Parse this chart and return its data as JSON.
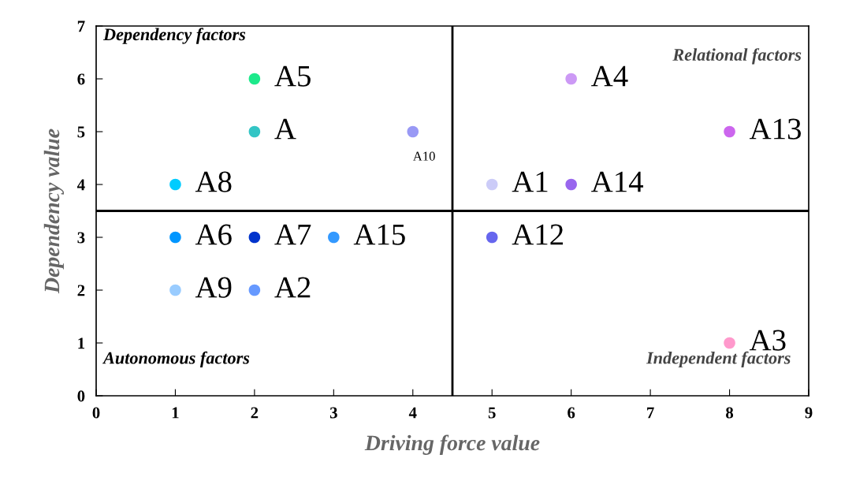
{
  "chart_data": {
    "type": "scatter",
    "xlabel": "Driving force value",
    "ylabel": "Dependency value",
    "xlim": [
      0,
      9
    ],
    "ylim": [
      0,
      7
    ],
    "xticks": [
      0,
      1,
      2,
      3,
      4,
      5,
      6,
      7,
      8,
      9
    ],
    "yticks": [
      0,
      1,
      2,
      3,
      4,
      5,
      6,
      7
    ],
    "grid": false,
    "legend": false,
    "marker": "circle",
    "ref_lines": [
      {
        "axis": "x",
        "value": 4.5,
        "color": "#000000"
      },
      {
        "axis": "y",
        "value": 3.5,
        "color": "#000000"
      }
    ],
    "annotations": [
      "Dependency factors",
      "Relational factors",
      "Autonomous factors",
      "Independent factors"
    ],
    "series": [
      {
        "name": "A5",
        "color": "#1de98b",
        "x": [
          2
        ],
        "values": [
          6
        ]
      },
      {
        "name": "A",
        "color": "#33c5c5",
        "x": [
          2
        ],
        "values": [
          5
        ]
      },
      {
        "name": "A10",
        "color": "#9999f5",
        "x": [
          4
        ],
        "values": [
          5
        ]
      },
      {
        "name": "A8",
        "color": "#00ccff",
        "x": [
          1
        ],
        "values": [
          4
        ]
      },
      {
        "name": "A6",
        "color": "#0096ff",
        "x": [
          1
        ],
        "values": [
          3
        ]
      },
      {
        "name": "A7",
        "color": "#0033cc",
        "x": [
          2
        ],
        "values": [
          3
        ]
      },
      {
        "name": "A15",
        "color": "#3399ff",
        "x": [
          3
        ],
        "values": [
          3
        ]
      },
      {
        "name": "A9",
        "color": "#99ccff",
        "x": [
          1
        ],
        "values": [
          2
        ]
      },
      {
        "name": "A2",
        "color": "#6699ff",
        "x": [
          2
        ],
        "values": [
          2
        ]
      },
      {
        "name": "A4",
        "color": "#cc99f5",
        "x": [
          6
        ],
        "values": [
          6
        ]
      },
      {
        "name": "A13",
        "color": "#cc66ee",
        "x": [
          8
        ],
        "values": [
          5
        ]
      },
      {
        "name": "A1",
        "color": "#ccccf8",
        "x": [
          5
        ],
        "values": [
          4
        ]
      },
      {
        "name": "A14",
        "color": "#9966ee",
        "x": [
          6
        ],
        "values": [
          4
        ]
      },
      {
        "name": "A12",
        "color": "#6666ee",
        "x": [
          5
        ],
        "values": [
          3
        ]
      },
      {
        "name": "A3",
        "color": "#ff99cc",
        "x": [
          8
        ],
        "values": [
          1
        ]
      }
    ]
  }
}
